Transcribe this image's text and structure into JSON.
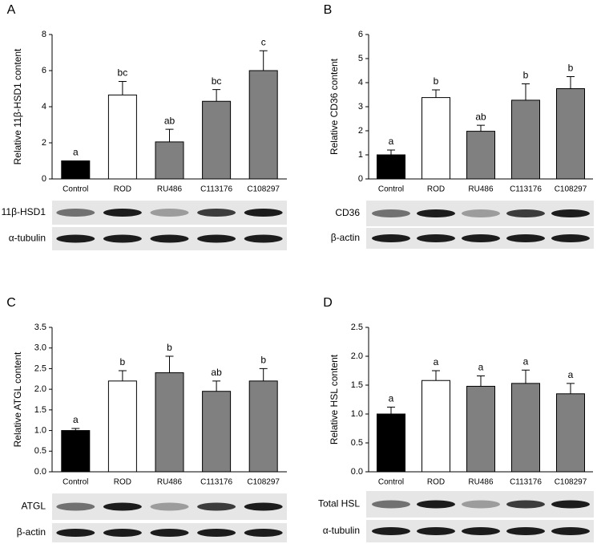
{
  "chart_data": [
    {
      "type": "bar",
      "panel": "A",
      "y_label": "Relative 11β-HSD1 content",
      "categories": [
        "Control",
        "ROD",
        "RU486",
        "C113176",
        "C108297"
      ],
      "values": [
        1.0,
        4.65,
        2.05,
        4.3,
        6.0
      ],
      "errors": [
        0,
        0.75,
        0.7,
        0.65,
        1.1
      ],
      "annotations": [
        "a",
        "bc",
        "ab",
        "bc",
        "c"
      ],
      "colors": [
        "#000000",
        "#ffffff",
        "#808080",
        "#808080",
        "#808080"
      ],
      "ylim": [
        0,
        8
      ],
      "yticks": [
        0,
        2,
        4,
        6,
        8
      ],
      "blot_labels": [
        "11β-HSD1",
        "α-tubulin"
      ]
    },
    {
      "type": "bar",
      "panel": "B",
      "y_label": "Relative CD36 content",
      "categories": [
        "Control",
        "ROD",
        "RU486",
        "C113176",
        "C108297"
      ],
      "values": [
        1.0,
        3.38,
        1.98,
        3.27,
        3.75
      ],
      "errors": [
        0.2,
        0.32,
        0.25,
        0.68,
        0.5
      ],
      "annotations": [
        "a",
        "b",
        "ab",
        "b",
        "b"
      ],
      "colors": [
        "#000000",
        "#ffffff",
        "#808080",
        "#808080",
        "#808080"
      ],
      "ylim": [
        0,
        6
      ],
      "yticks": [
        0,
        1,
        2,
        3,
        4,
        5,
        6
      ],
      "blot_labels": [
        "CD36",
        "β-actin"
      ]
    },
    {
      "type": "bar",
      "panel": "C",
      "y_label": "Relative  ATGL content",
      "categories": [
        "Control",
        "ROD",
        "RU486",
        "C113176",
        "C108297"
      ],
      "values": [
        1.0,
        2.2,
        2.4,
        1.95,
        2.2
      ],
      "errors": [
        0.05,
        0.25,
        0.4,
        0.25,
        0.3
      ],
      "annotations": [
        "a",
        "b",
        "b",
        "ab",
        "b"
      ],
      "colors": [
        "#000000",
        "#ffffff",
        "#808080",
        "#808080",
        "#808080"
      ],
      "ylim": [
        0,
        3.5
      ],
      "yticks": [
        {
          "value": 0,
          "label": "0.0"
        },
        0.5,
        {
          "value": 1,
          "label": "1.0"
        },
        1.5,
        {
          "value": 2,
          "label": "2.0"
        },
        2.5,
        {
          "value": 3,
          "label": "3.0"
        },
        3.5
      ],
      "blot_labels": [
        "ATGL",
        "β-actin"
      ]
    },
    {
      "type": "bar",
      "panel": "D",
      "y_label": "Relative HSL content",
      "categories": [
        "Control",
        "ROD",
        "RU486",
        "C113176",
        "C108297"
      ],
      "values": [
        1.0,
        1.58,
        1.48,
        1.53,
        1.35
      ],
      "errors": [
        0.12,
        0.17,
        0.18,
        0.23,
        0.18
      ],
      "annotations": [
        "a",
        "a",
        "a",
        "a",
        "a"
      ],
      "colors": [
        "#000000",
        "#ffffff",
        "#808080",
        "#808080",
        "#808080"
      ],
      "ylim": [
        0,
        2.5
      ],
      "yticks": [
        {
          "value": 0,
          "label": "0.0"
        },
        0.5,
        {
          "value": 1,
          "label": "1.0"
        },
        1.5,
        {
          "value": 2,
          "label": "2.0"
        },
        2.5
      ],
      "blot_labels": [
        "Total HSL",
        "α-tubulin"
      ]
    }
  ]
}
